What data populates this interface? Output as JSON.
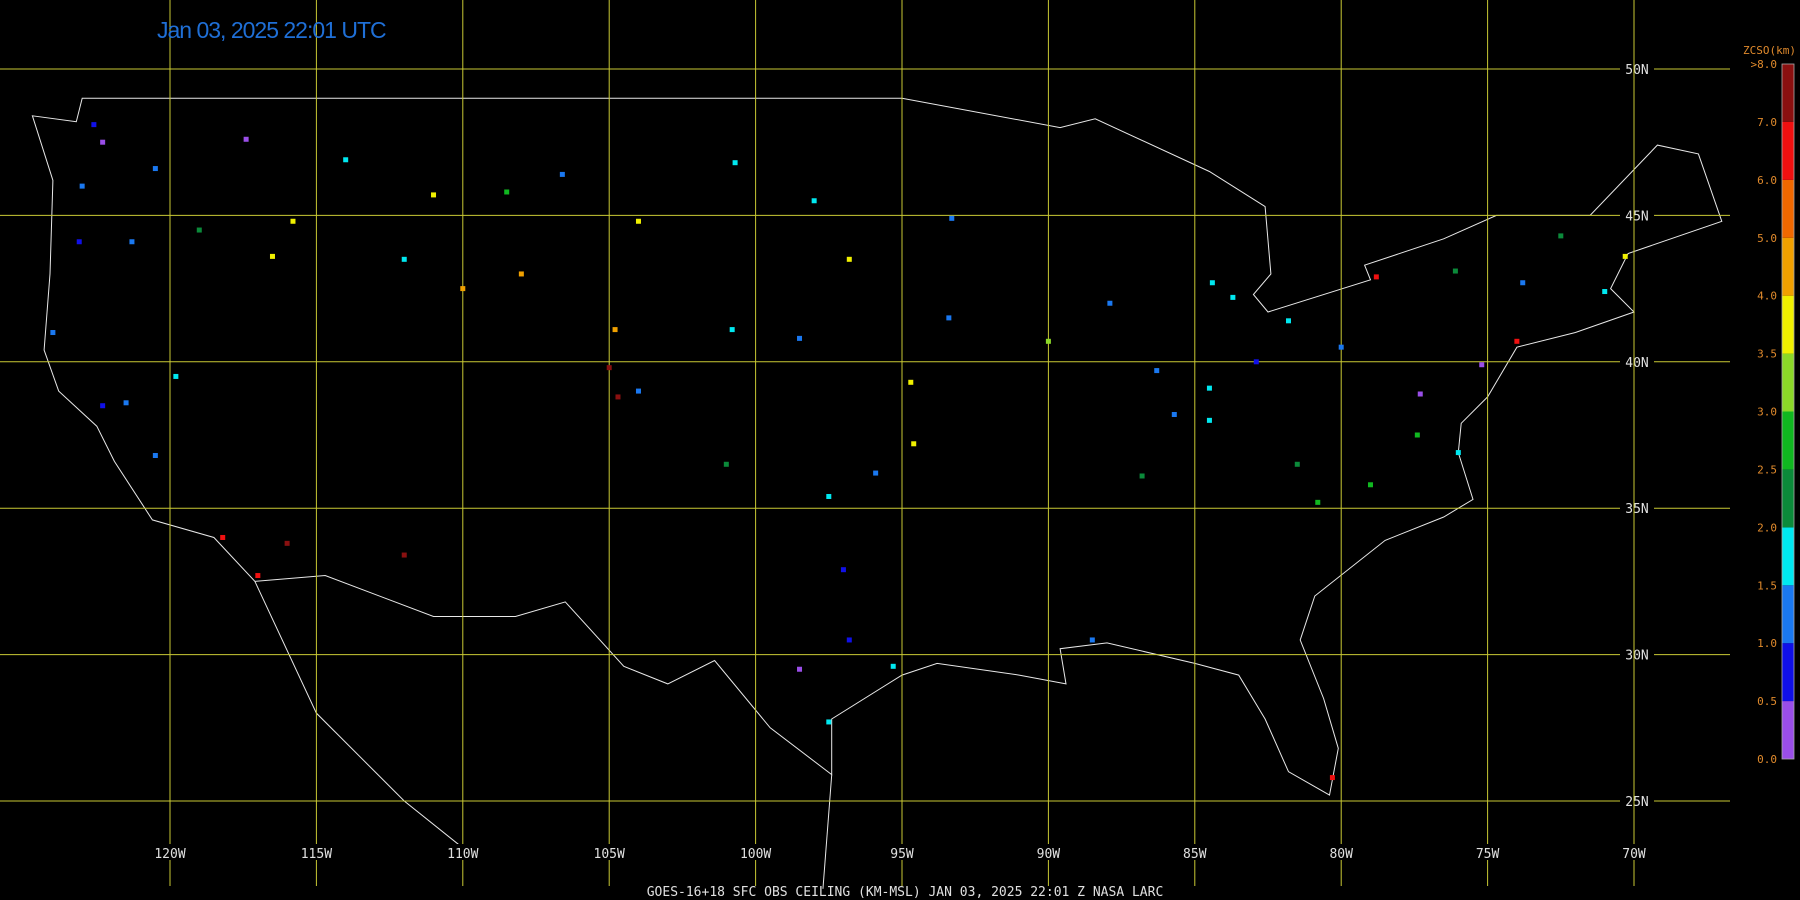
{
  "map": {
    "title": "Jan 03, 2025 22:01 UTC",
    "footer": "GOES-16+18  SFC OBS CEILING (KM-MSL)   JAN 03, 2025 22:01 Z   NASA LARC",
    "grid_color": "#c9c934",
    "lat_lines": [
      {
        "value": 50,
        "label": "50N"
      },
      {
        "value": 45,
        "label": "45N"
      },
      {
        "value": 40,
        "label": "40N"
      },
      {
        "value": 35,
        "label": "35N"
      },
      {
        "value": 30,
        "label": "30N"
      },
      {
        "value": 25,
        "label": "25N"
      }
    ],
    "lon_lines": [
      {
        "value": -120,
        "label": "120W"
      },
      {
        "value": -115,
        "label": "115W"
      },
      {
        "value": -110,
        "label": "110W"
      },
      {
        "value": -105,
        "label": "105W"
      },
      {
        "value": -100,
        "label": "100W"
      },
      {
        "value": -95,
        "label": "95W"
      },
      {
        "value": -90,
        "label": "90W"
      },
      {
        "value": -85,
        "label": "85W"
      },
      {
        "value": -80,
        "label": "80W"
      },
      {
        "value": -75,
        "label": "75W"
      },
      {
        "value": -70,
        "label": "70W"
      }
    ],
    "colorbar": {
      "title": "ZCSO(km)",
      "ticks": [
        {
          "value": 0,
          "label": "0.0"
        },
        {
          "value": 0.5,
          "label": "0.5"
        },
        {
          "value": 1,
          "label": "1.0"
        },
        {
          "value": 1.5,
          "label": "1.5"
        },
        {
          "value": 2,
          "label": "2.0"
        },
        {
          "value": 2.5,
          "label": "2.5"
        },
        {
          "value": 3,
          "label": "3.0"
        },
        {
          "value": 3.5,
          "label": "3.5"
        },
        {
          "value": 4,
          "label": "4.0"
        },
        {
          "value": 5,
          "label": "5.0"
        },
        {
          "value": 6,
          "label": "6.0"
        },
        {
          "value": 7,
          "label": "7.0"
        },
        {
          "value": 8,
          "label": ">8.0"
        }
      ],
      "colors": [
        "#9a4ee8",
        "#1010e8",
        "#1a78f0",
        "#00e8f0",
        "#0b8a3a",
        "#10b820",
        "#8cd828",
        "#f0f000",
        "#f0a000",
        "#f06800",
        "#f01010",
        "#8a1010"
      ]
    },
    "stations": [
      {
        "lon": -122.3,
        "lat": 47.5,
        "ceiling": 0.3
      },
      {
        "lon": -122.6,
        "lat": 48.1,
        "ceiling": 0.6
      },
      {
        "lon": -123,
        "lat": 46,
        "ceiling": 1.4
      },
      {
        "lon": -120.5,
        "lat": 46.6,
        "ceiling": 1.2
      },
      {
        "lon": -117.4,
        "lat": 47.6,
        "ceiling": 0.4
      },
      {
        "lon": -116.5,
        "lat": 43.6,
        "ceiling": 3.8
      },
      {
        "lon": -114,
        "lat": 46.9,
        "ceiling": 1.8
      },
      {
        "lon": -111,
        "lat": 45.7,
        "ceiling": 3.7
      },
      {
        "lon": -108.5,
        "lat": 45.8,
        "ceiling": 2.6
      },
      {
        "lon": -106.6,
        "lat": 46.4,
        "ceiling": 1.1
      },
      {
        "lon": -104,
        "lat": 44.8,
        "ceiling": 3.8
      },
      {
        "lon": -100.7,
        "lat": 46.8,
        "ceiling": 1.7
      },
      {
        "lon": -96.8,
        "lat": 43.5,
        "ceiling": 3.6
      },
      {
        "lon": -98,
        "lat": 45.5,
        "ceiling": 1.9
      },
      {
        "lon": -104.8,
        "lat": 41.1,
        "ceiling": 4.5
      },
      {
        "lon": -108,
        "lat": 43,
        "ceiling": 4.3
      },
      {
        "lon": -110,
        "lat": 42.5,
        "ceiling": 4.4
      },
      {
        "lon": -112,
        "lat": 43.5,
        "ceiling": 1.7
      },
      {
        "lon": -115.8,
        "lat": 44.8,
        "ceiling": 3.7
      },
      {
        "lon": -119,
        "lat": 44.5,
        "ceiling": 2.3
      },
      {
        "lon": -121.3,
        "lat": 44.1,
        "ceiling": 1.2
      },
      {
        "lon": -123.1,
        "lat": 44.1,
        "ceiling": 0.7
      },
      {
        "lon": -124,
        "lat": 41,
        "ceiling": 1.3
      },
      {
        "lon": -122.3,
        "lat": 38.5,
        "ceiling": 0.9
      },
      {
        "lon": -121.5,
        "lat": 38.6,
        "ceiling": 1.2
      },
      {
        "lon": -119.8,
        "lat": 39.5,
        "ceiling": 1.9
      },
      {
        "lon": -120.5,
        "lat": 36.8,
        "ceiling": 1.1
      },
      {
        "lon": -118.2,
        "lat": 34,
        "ceiling": 6.2
      },
      {
        "lon": -117,
        "lat": 32.7,
        "ceiling": 6.5
      },
      {
        "lon": -116,
        "lat": 33.8,
        "ceiling": 7.2
      },
      {
        "lon": -112,
        "lat": 33.4,
        "ceiling": 7.5
      },
      {
        "lon": -105,
        "lat": 39.8,
        "ceiling": 7.8
      },
      {
        "lon": -104.7,
        "lat": 38.8,
        "ceiling": 7.8
      },
      {
        "lon": -97,
        "lat": 32.9,
        "ceiling": 0.8
      },
      {
        "lon": -96.8,
        "lat": 30.5,
        "ceiling": 0.6
      },
      {
        "lon": -98.5,
        "lat": 29.5,
        "ceiling": 0.3
      },
      {
        "lon": -97.5,
        "lat": 27.7,
        "ceiling": 1.6
      },
      {
        "lon": -95.3,
        "lat": 29.6,
        "ceiling": 1.7
      },
      {
        "lon": -97.5,
        "lat": 35.4,
        "ceiling": 1.6
      },
      {
        "lon": -95.9,
        "lat": 36.2,
        "ceiling": 1.1
      },
      {
        "lon": -94.7,
        "lat": 39.3,
        "ceiling": 3.6
      },
      {
        "lon": -94.6,
        "lat": 37.2,
        "ceiling": 3.7
      },
      {
        "lon": -93.4,
        "lat": 41.5,
        "ceiling": 1.2
      },
      {
        "lon": -93.3,
        "lat": 44.9,
        "ceiling": 1.1
      },
      {
        "lon": -90,
        "lat": 40.7,
        "ceiling": 3.2
      },
      {
        "lon": -87.9,
        "lat": 42,
        "ceiling": 1.2
      },
      {
        "lon": -86.3,
        "lat": 39.7,
        "ceiling": 1.3
      },
      {
        "lon": -84.4,
        "lat": 42.7,
        "ceiling": 1.7
      },
      {
        "lon": -83.7,
        "lat": 42.2,
        "ceiling": 1.5
      },
      {
        "lon": -84.5,
        "lat": 39.1,
        "ceiling": 1.7
      },
      {
        "lon": -82.9,
        "lat": 40,
        "ceiling": 0.8
      },
      {
        "lon": -81.8,
        "lat": 41.4,
        "ceiling": 1.6
      },
      {
        "lon": -80,
        "lat": 40.5,
        "ceiling": 1.2
      },
      {
        "lon": -78.8,
        "lat": 42.9,
        "ceiling": 6.5
      },
      {
        "lon": -76.1,
        "lat": 43.1,
        "ceiling": 2.2
      },
      {
        "lon": -77.3,
        "lat": 38.9,
        "ceiling": 0.3
      },
      {
        "lon": -75.2,
        "lat": 39.9,
        "ceiling": 0.4
      },
      {
        "lon": -74,
        "lat": 40.7,
        "ceiling": 6.3
      },
      {
        "lon": -73.8,
        "lat": 42.7,
        "ceiling": 1.4
      },
      {
        "lon": -71,
        "lat": 42.4,
        "ceiling": 1.8
      },
      {
        "lon": -70.3,
        "lat": 43.6,
        "ceiling": 3.7
      },
      {
        "lon": -72.5,
        "lat": 44.3,
        "ceiling": 2.2
      },
      {
        "lon": -79,
        "lat": 35.8,
        "ceiling": 2.8
      },
      {
        "lon": -80.8,
        "lat": 35.2,
        "ceiling": 2.9
      },
      {
        "lon": -81.5,
        "lat": 36.5,
        "ceiling": 2.3
      },
      {
        "lon": -77.4,
        "lat": 37.5,
        "ceiling": 2.9
      },
      {
        "lon": -76,
        "lat": 36.9,
        "ceiling": 1.8
      },
      {
        "lon": -85.7,
        "lat": 38.2,
        "ceiling": 1.3
      },
      {
        "lon": -84.5,
        "lat": 38,
        "ceiling": 1.7
      },
      {
        "lon": -86.8,
        "lat": 36.1,
        "ceiling": 2.3
      },
      {
        "lon": -88.5,
        "lat": 30.5,
        "ceiling": 1.2
      },
      {
        "lon": -80.3,
        "lat": 25.8,
        "ceiling": 6.8
      },
      {
        "lon": -104,
        "lat": 39,
        "ceiling": 1.3
      },
      {
        "lon": -100.8,
        "lat": 41.1,
        "ceiling": 1.6
      },
      {
        "lon": -98.5,
        "lat": 40.8,
        "ceiling": 1.2
      },
      {
        "lon": -101,
        "lat": 36.5,
        "ceiling": 2.1
      }
    ]
  }
}
